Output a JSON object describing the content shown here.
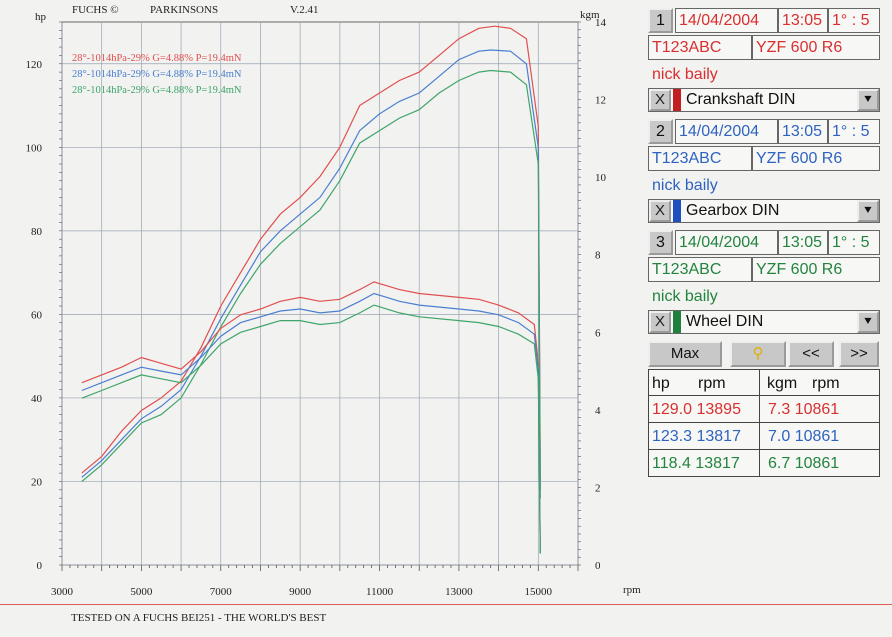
{
  "header": {
    "left_unit": "hp",
    "brand": "FUCHS ©",
    "company": "PARKINSONS",
    "version": "V.2.41",
    "right_unit": "kgm"
  },
  "chart_data": {
    "type": "line",
    "x_unit": "rpm",
    "xlim": [
      3000,
      16000
    ],
    "x_ticks": [
      "3000",
      "5000",
      "7000",
      "9000",
      "11000",
      "13000",
      "15000"
    ],
    "ylim_left": [
      0,
      130
    ],
    "y_ticks_left": [
      "0",
      "20",
      "40",
      "60",
      "80",
      "100",
      "120"
    ],
    "ylim_right": [
      0,
      14
    ],
    "y_ticks_right": [
      "0",
      "2",
      "4",
      "6",
      "8",
      "10",
      "12",
      "14"
    ],
    "grid": true,
    "legend": [
      {
        "text": "28°-1014hPa-29% G=4.88% P=19.4mN",
        "color": "#e05050"
      },
      {
        "text": "28°-1014hPa-29% G=4.88% P=19.4mN",
        "color": "#4a7fd0"
      },
      {
        "text": "28°-1014hPa-29% G=4.88% P=19.4mN",
        "color": "#3fa56a"
      }
    ],
    "series": [
      {
        "kind": "hp",
        "color": "#e05050",
        "points": [
          [
            3500,
            22
          ],
          [
            4000,
            26
          ],
          [
            4500,
            32
          ],
          [
            5000,
            37
          ],
          [
            5500,
            40
          ],
          [
            6000,
            44
          ],
          [
            6500,
            52
          ],
          [
            7000,
            62
          ],
          [
            7500,
            70
          ],
          [
            8000,
            78
          ],
          [
            8500,
            84
          ],
          [
            9000,
            88
          ],
          [
            9500,
            93
          ],
          [
            10000,
            100
          ],
          [
            10500,
            110
          ],
          [
            11000,
            113
          ],
          [
            11500,
            116
          ],
          [
            12000,
            118
          ],
          [
            12500,
            122
          ],
          [
            13000,
            126
          ],
          [
            13500,
            128.5
          ],
          [
            13900,
            129
          ],
          [
            14300,
            128.5
          ],
          [
            14700,
            126
          ],
          [
            15000,
            105
          ],
          [
            15050,
            20
          ]
        ]
      },
      {
        "kind": "hp",
        "color": "#4a7fd0",
        "points": [
          [
            3500,
            21
          ],
          [
            4000,
            25
          ],
          [
            4500,
            30
          ],
          [
            5000,
            35
          ],
          [
            5500,
            38
          ],
          [
            6000,
            42
          ],
          [
            6500,
            50
          ],
          [
            7000,
            59
          ],
          [
            7500,
            67
          ],
          [
            8000,
            75
          ],
          [
            8500,
            80
          ],
          [
            9000,
            84
          ],
          [
            9500,
            88
          ],
          [
            10000,
            95
          ],
          [
            10500,
            104
          ],
          [
            11000,
            108
          ],
          [
            11500,
            111
          ],
          [
            12000,
            113
          ],
          [
            12500,
            117
          ],
          [
            13000,
            121
          ],
          [
            13500,
            123
          ],
          [
            13800,
            123.3
          ],
          [
            14300,
            123
          ],
          [
            14700,
            120
          ],
          [
            15000,
            100
          ],
          [
            15050,
            18
          ]
        ]
      },
      {
        "kind": "hp",
        "color": "#3fa56a",
        "points": [
          [
            3500,
            20
          ],
          [
            4000,
            24
          ],
          [
            4500,
            29
          ],
          [
            5000,
            34
          ],
          [
            5500,
            36
          ],
          [
            6000,
            40
          ],
          [
            6500,
            48
          ],
          [
            7000,
            57
          ],
          [
            7500,
            65
          ],
          [
            8000,
            72
          ],
          [
            8500,
            77
          ],
          [
            9000,
            81
          ],
          [
            9500,
            85
          ],
          [
            10000,
            92
          ],
          [
            10500,
            101
          ],
          [
            11000,
            104
          ],
          [
            11500,
            107
          ],
          [
            12000,
            109
          ],
          [
            12500,
            113
          ],
          [
            13000,
            116
          ],
          [
            13500,
            118
          ],
          [
            13800,
            118.4
          ],
          [
            14300,
            118
          ],
          [
            14700,
            115
          ],
          [
            15000,
            96
          ],
          [
            15050,
            16
          ]
        ]
      },
      {
        "kind": "kgm",
        "color": "#e05050",
        "points": [
          [
            3500,
            4.7
          ],
          [
            4000,
            4.9
          ],
          [
            4500,
            5.1
          ],
          [
            5000,
            5.35
          ],
          [
            5500,
            5.2
          ],
          [
            6000,
            5.05
          ],
          [
            6500,
            5.5
          ],
          [
            7000,
            6.1
          ],
          [
            7500,
            6.45
          ],
          [
            8000,
            6.6
          ],
          [
            8500,
            6.8
          ],
          [
            9000,
            6.9
          ],
          [
            9500,
            6.8
          ],
          [
            10000,
            6.85
          ],
          [
            10500,
            7.1
          ],
          [
            10861,
            7.3
          ],
          [
            11500,
            7.1
          ],
          [
            12000,
            7.0
          ],
          [
            13000,
            6.9
          ],
          [
            13500,
            6.85
          ],
          [
            14000,
            6.7
          ],
          [
            14500,
            6.5
          ],
          [
            14900,
            6.2
          ],
          [
            15000,
            5.2
          ],
          [
            15050,
            0.3
          ]
        ]
      },
      {
        "kind": "kgm",
        "color": "#4a7fd0",
        "points": [
          [
            3500,
            4.5
          ],
          [
            4000,
            4.7
          ],
          [
            4500,
            4.9
          ],
          [
            5000,
            5.1
          ],
          [
            5500,
            5.0
          ],
          [
            6000,
            4.9
          ],
          [
            6500,
            5.35
          ],
          [
            7000,
            5.9
          ],
          [
            7500,
            6.25
          ],
          [
            8000,
            6.4
          ],
          [
            8500,
            6.55
          ],
          [
            9000,
            6.6
          ],
          [
            9500,
            6.5
          ],
          [
            10000,
            6.55
          ],
          [
            10500,
            6.8
          ],
          [
            10861,
            7.0
          ],
          [
            11500,
            6.8
          ],
          [
            12000,
            6.7
          ],
          [
            13000,
            6.6
          ],
          [
            13500,
            6.55
          ],
          [
            14000,
            6.45
          ],
          [
            14500,
            6.25
          ],
          [
            14900,
            5.95
          ],
          [
            15000,
            5.0
          ],
          [
            15050,
            0.3
          ]
        ]
      },
      {
        "kind": "kgm",
        "color": "#3fa56a",
        "points": [
          [
            3500,
            4.3
          ],
          [
            4000,
            4.5
          ],
          [
            4500,
            4.7
          ],
          [
            5000,
            4.9
          ],
          [
            5500,
            4.8
          ],
          [
            6000,
            4.7
          ],
          [
            6500,
            5.15
          ],
          [
            7000,
            5.7
          ],
          [
            7500,
            6.0
          ],
          [
            8000,
            6.15
          ],
          [
            8500,
            6.3
          ],
          [
            9000,
            6.3
          ],
          [
            9500,
            6.2
          ],
          [
            10000,
            6.25
          ],
          [
            10500,
            6.5
          ],
          [
            10861,
            6.7
          ],
          [
            11500,
            6.5
          ],
          [
            12000,
            6.4
          ],
          [
            13000,
            6.3
          ],
          [
            13500,
            6.25
          ],
          [
            14000,
            6.15
          ],
          [
            14500,
            5.95
          ],
          [
            14900,
            5.7
          ],
          [
            15000,
            4.8
          ],
          [
            15050,
            0.3
          ]
        ]
      }
    ]
  },
  "runs": [
    {
      "num": "1",
      "date": "14/04/2004",
      "time": "13:05",
      "ratio": "1° : 5",
      "reg": "T123ABC",
      "model": "YZF 600 R6",
      "rider": "nick baily",
      "close": "X",
      "mode": "Crankshaft DIN",
      "color": "#d83030",
      "swatch": "#c02020"
    },
    {
      "num": "2",
      "date": "14/04/2004",
      "time": "13:05",
      "ratio": "1° : 5",
      "reg": "T123ABC",
      "model": "YZF 600 R6",
      "rider": "nick baily",
      "close": "X",
      "mode": "Gearbox DIN",
      "color": "#2f63c0",
      "swatch": "#2050c0"
    },
    {
      "num": "3",
      "date": "14/04/2004",
      "time": "13:05",
      "ratio": "1° : 5",
      "reg": "T123ABC",
      "model": "YZF 600 R6",
      "rider": "nick baily",
      "close": "X",
      "mode": "Wheel DIN",
      "color": "#23843f",
      "swatch": "#208040"
    }
  ],
  "controls": {
    "max_label": "Max",
    "prev_label": "<<",
    "next_label": ">>",
    "dropdown_glyph": "⯆"
  },
  "results": {
    "headers": {
      "hp": "hp",
      "rpm1": "rpm",
      "kgm": "kgm",
      "rpm2": "rpm"
    },
    "rows": [
      {
        "hp": "129.0 13895",
        "kgm": "7.3 10861",
        "color": "#d83030"
      },
      {
        "hp": "123.3 13817",
        "kgm": "7.0 10861",
        "color": "#2f63c0"
      },
      {
        "hp": "118.4 13817",
        "kgm": "6.7 10861",
        "color": "#23843f"
      }
    ]
  },
  "footer": {
    "text": "TESTED ON A FUCHS BEI251 - THE WORLD'S BEST"
  }
}
